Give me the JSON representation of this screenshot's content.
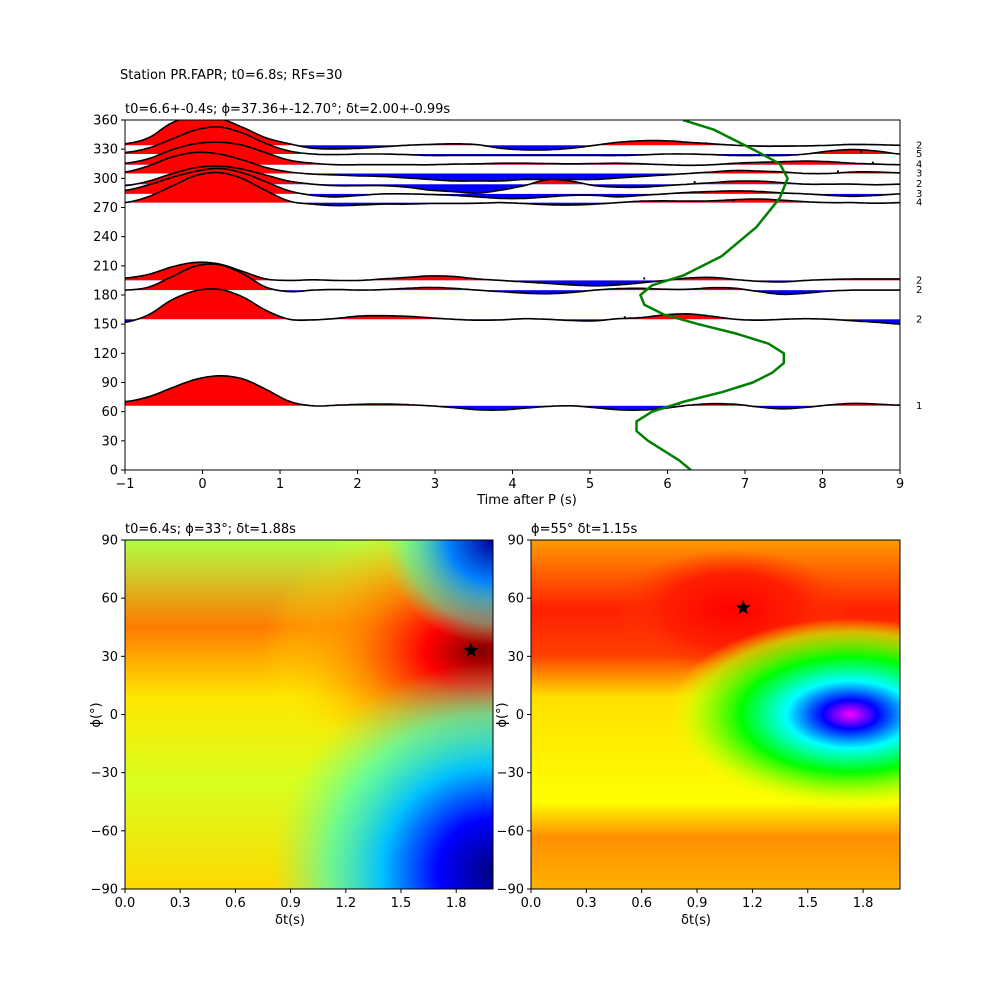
{
  "suptitle": "Station PR.FAPR; t0=6.8s; RFs=30",
  "colors": {
    "positive": "#ff0000",
    "negative": "#0000ff",
    "curve": "#008000",
    "trace": "#000000",
    "star": "#000000"
  },
  "chart_data": [
    {
      "type": "line",
      "panel": "receiver-function-traces",
      "title": "t0=6.6+-0.4s; ϕ=37.36+-12.70°; δt=2.00+-0.99s",
      "xlabel": "Time after P (s)",
      "ylabel": "",
      "xlim": [
        -1,
        9
      ],
      "ylim": [
        0,
        360
      ],
      "xticks": [
        -1,
        0,
        1,
        2,
        3,
        4,
        5,
        6,
        7,
        8,
        9
      ],
      "yticks": [
        0,
        30,
        60,
        90,
        120,
        150,
        180,
        210,
        240,
        270,
        300,
        330,
        360
      ],
      "fill_positive": "red",
      "fill_negative": "blue",
      "traces": [
        {
          "baseaz": 66,
          "count": "1",
          "amps": [
            0.14,
            0.3,
            0.6,
            0.88,
            1.0,
            0.9,
            0.55,
            0.15,
            0.0,
            0.02,
            0.05,
            0.06,
            0.04,
            0.0,
            -0.06,
            -0.13,
            -0.14,
            -0.08,
            -0.02,
            0.0,
            -0.06,
            -0.13,
            -0.14,
            -0.08,
            0.02,
            0.07,
            0.05,
            -0.04,
            -0.1,
            -0.05,
            0.03,
            0.08,
            0.06,
            0.02
          ],
          "pick": 6.15
        },
        {
          "baseaz": 155,
          "count": "2",
          "amps": [
            -0.1,
            0.15,
            0.65,
            0.95,
            1.0,
            0.75,
            0.3,
            0.0,
            -0.02,
            0.03,
            0.11,
            0.12,
            0.1,
            0.05,
            0.0,
            -0.03,
            -0.02,
            0.02,
            0.0,
            -0.04,
            -0.05,
            0.02,
            0.06,
            0.15,
            0.18,
            0.1,
            0.0,
            -0.03,
            0.0,
            0.02,
            0.0,
            -0.05,
            -0.1,
            -0.16
          ],
          "pick": 5.45
        },
        {
          "baseaz": 185,
          "count": "2",
          "amps": [
            0.0,
            0.1,
            0.45,
            0.8,
            0.85,
            0.55,
            0.1,
            -0.05,
            0.0,
            0.02,
            0.0,
            0.02,
            0.06,
            0.09,
            0.06,
            0.0,
            -0.05,
            -0.1,
            -0.12,
            -0.08,
            0.0,
            0.05,
            0.06,
            0.03,
            0.03,
            0.08,
            0.06,
            -0.05,
            -0.14,
            -0.1,
            -0.03,
            0.0,
            0.0,
            0.0
          ],
          "pick": 6.8
        },
        {
          "baseaz": 195,
          "count": "2",
          "amps": [
            0.08,
            0.2,
            0.45,
            0.6,
            0.55,
            0.3,
            0.05,
            0.0,
            0.02,
            0.0,
            0.0,
            0.05,
            0.1,
            0.15,
            0.13,
            0.05,
            0.0,
            -0.05,
            -0.1,
            -0.15,
            -0.18,
            -0.15,
            -0.08,
            0.0,
            0.08,
            0.1,
            0.03,
            -0.03,
            -0.05,
            0.0,
            0.03,
            0.05,
            0.05,
            0.05
          ],
          "pick": 5.7
        },
        {
          "baseaz": 275,
          "count": "4",
          "amps": [
            0.0,
            0.2,
            0.55,
            0.9,
            1.0,
            0.8,
            0.4,
            0.05,
            -0.05,
            -0.1,
            -0.08,
            -0.05,
            -0.05,
            -0.03,
            -0.03,
            -0.02,
            0.0,
            -0.03,
            -0.07,
            -0.08,
            -0.05,
            0.0,
            0.05,
            0.06,
            0.05,
            0.06,
            0.1,
            0.12,
            0.08,
            0.03,
            0.0,
            0.0,
            -0.02,
            0.0
          ],
          "pick": 6.85
        },
        {
          "baseaz": 284,
          "count": "3",
          "amps": [
            0.12,
            0.3,
            0.55,
            0.75,
            0.85,
            0.7,
            0.4,
            0.1,
            -0.05,
            -0.1,
            -0.05,
            0.0,
            0.0,
            -0.02,
            -0.05,
            -0.1,
            -0.15,
            -0.15,
            -0.1,
            -0.05,
            -0.05,
            -0.1,
            -0.05,
            0.0,
            0.05,
            0.08,
            0.1,
            0.08,
            0.03,
            0.0,
            -0.05,
            -0.08,
            -0.05,
            0.0
          ],
          "pick": 7.2
        },
        {
          "baseaz": 294,
          "count": "2",
          "amps": [
            -0.05,
            0.1,
            0.35,
            0.55,
            0.6,
            0.5,
            0.3,
            0.1,
            0.0,
            -0.05,
            -0.05,
            -0.05,
            -0.1,
            -0.2,
            -0.25,
            -0.3,
            -0.2,
            -0.05,
            0.15,
            0.1,
            -0.05,
            -0.1,
            -0.1,
            -0.05,
            0.0,
            0.05,
            0.1,
            0.1,
            0.05,
            0.0,
            0.0,
            0.0,
            -0.02,
            0.0
          ],
          "pick": 6.35
        },
        {
          "baseaz": 305,
          "count": "3",
          "amps": [
            0.05,
            0.25,
            0.55,
            0.7,
            0.65,
            0.45,
            0.2,
            0.05,
            -0.02,
            -0.05,
            -0.08,
            -0.1,
            -0.15,
            -0.2,
            -0.25,
            -0.25,
            -0.25,
            -0.2,
            -0.2,
            -0.2,
            -0.2,
            -0.15,
            -0.1,
            -0.05,
            0.0,
            0.05,
            0.1,
            0.08,
            0.05,
            0.0,
            0.0,
            0.05,
            0.05,
            0.02
          ],
          "pick": 8.2
        },
        {
          "baseaz": 314,
          "count": "4",
          "amps": [
            0.05,
            0.2,
            0.5,
            0.7,
            0.75,
            0.65,
            0.4,
            0.15,
            0.05,
            0.0,
            0.0,
            0.0,
            0.0,
            0.0,
            0.02,
            0.03,
            0.05,
            0.05,
            0.04,
            0.03,
            0.04,
            0.05,
            0.03,
            0.0,
            -0.02,
            0.0,
            0.05,
            0.08,
            0.1,
            0.12,
            0.1,
            0.05,
            0.02,
            0.0
          ],
          "pick": 8.65
        },
        {
          "baseaz": 325,
          "count": "5",
          "amps": [
            0.05,
            0.2,
            0.5,
            0.8,
            0.9,
            0.7,
            0.35,
            0.1,
            0.0,
            -0.02,
            0.0,
            0.0,
            -0.02,
            -0.05,
            -0.05,
            -0.05,
            -0.05,
            -0.05,
            -0.05,
            -0.05,
            -0.05,
            -0.05,
            -0.03,
            0.0,
            0.0,
            -0.02,
            -0.05,
            -0.05,
            -0.05,
            0.0,
            0.1,
            0.15,
            0.1,
            0.0
          ],
          "pick": 8.5
        },
        {
          "baseaz": 334,
          "count": "2",
          "amps": [
            0.05,
            0.25,
            0.75,
            0.98,
            0.9,
            0.6,
            0.25,
            0.05,
            -0.1,
            -0.12,
            -0.1,
            -0.05,
            0.0,
            0.03,
            0.05,
            0.02,
            -0.1,
            -0.15,
            -0.15,
            -0.1,
            0.0,
            0.1,
            0.15,
            0.15,
            0.1,
            0.05,
            0.0,
            -0.03,
            -0.03,
            -0.02,
            0.0,
            0.03,
            0.02,
            0.0
          ],
          "pick": 6.5
        }
      ],
      "green_curve": {
        "x": [
          6.3,
          6.15,
          5.95,
          5.75,
          5.6,
          5.6,
          5.8,
          6.2,
          6.7,
          7.1,
          7.35,
          7.5,
          7.5,
          7.3,
          6.9,
          6.4,
          5.95,
          5.7,
          5.65,
          5.8,
          6.2,
          6.7,
          7.15,
          7.45,
          7.55,
          7.45,
          7.1,
          6.6,
          6.2
        ],
        "y": [
          0,
          10,
          20,
          30,
          40,
          50,
          60,
          70,
          80,
          90,
          100,
          110,
          120,
          130,
          140,
          150,
          160,
          170,
          180,
          190,
          200,
          220,
          250,
          280,
          300,
          315,
          330,
          350,
          360
        ]
      }
    },
    {
      "type": "heatmap",
      "panel": "energy-map-left",
      "title": "t0=6.4s; ϕ=33°; δt=1.88s",
      "xlabel": "δt(s)",
      "ylabel": "ϕ(°)",
      "xlim": [
        0,
        2
      ],
      "ylim": [
        -90,
        90
      ],
      "xticks": [
        0.0,
        0.3,
        0.6,
        0.9,
        1.2,
        1.5,
        1.8
      ],
      "yticks": [
        -90,
        -60,
        -30,
        0,
        30,
        60,
        90
      ],
      "colormap": "jet",
      "star": {
        "dt": 1.88,
        "phi": 33
      }
    },
    {
      "type": "heatmap",
      "panel": "energy-map-right",
      "title": "ϕ=55° δt=1.15s",
      "xlabel": "δt(s)",
      "ylabel": "ϕ(°)",
      "xlim": [
        0,
        2
      ],
      "ylim": [
        -90,
        90
      ],
      "xticks": [
        0.0,
        0.3,
        0.6,
        0.9,
        1.2,
        1.5,
        1.8
      ],
      "yticks": [
        -90,
        -60,
        -30,
        0,
        30,
        60,
        90
      ],
      "colormap": "hsv",
      "star": {
        "dt": 1.15,
        "phi": 55
      }
    }
  ]
}
